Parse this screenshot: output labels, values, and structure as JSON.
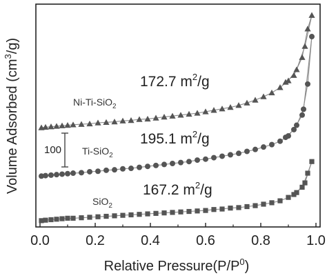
{
  "chart_data": {
    "type": "scatter",
    "xlabel": "Relative Pressure(P/P",
    "xlabel_sup": "0",
    "xlabel_end": ")",
    "ylabel": "Volume Adsorbed (cm",
    "ylabel_sup": "3",
    "ylabel_end": "/g)",
    "xlim": [
      0.0,
      1.0
    ],
    "xticks": [
      "0.0",
      "0.2",
      "0.4",
      "0.6",
      "0.8",
      "1.0"
    ],
    "yticks_shown": false,
    "scale_bar": {
      "label": "100",
      "value": 100
    },
    "series": [
      {
        "name": "Ni-Ti-SiO",
        "name_sub": "2",
        "marker": "triangle",
        "color": "#555555",
        "surface_area": "172.7 m",
        "surface_area_sup": "2",
        "surface_area_end": "/g",
        "adsorption": [
          [
            0.005,
            200
          ],
          [
            0.02,
            201
          ],
          [
            0.04,
            202
          ],
          [
            0.06,
            203
          ],
          [
            0.08,
            204
          ],
          [
            0.1,
            205
          ],
          [
            0.12,
            206
          ],
          [
            0.15,
            207
          ],
          [
            0.18,
            208
          ],
          [
            0.21,
            210
          ],
          [
            0.24,
            211
          ],
          [
            0.27,
            212
          ],
          [
            0.3,
            214
          ],
          [
            0.33,
            215
          ],
          [
            0.36,
            217
          ],
          [
            0.39,
            218
          ],
          [
            0.42,
            220
          ],
          [
            0.45,
            222
          ],
          [
            0.48,
            224
          ],
          [
            0.51,
            226
          ],
          [
            0.54,
            228
          ],
          [
            0.57,
            230
          ],
          [
            0.6,
            233
          ],
          [
            0.63,
            236
          ],
          [
            0.66,
            239
          ],
          [
            0.69,
            242
          ],
          [
            0.72,
            246
          ],
          [
            0.75,
            251
          ],
          [
            0.78,
            257
          ],
          [
            0.81,
            264
          ],
          [
            0.84,
            272
          ],
          [
            0.87,
            283
          ],
          [
            0.9,
            297
          ],
          [
            0.93,
            320
          ],
          [
            0.96,
            368
          ],
          [
            0.985,
            432
          ]
        ],
        "desorption": [
          [
            0.985,
            432
          ],
          [
            0.97,
            404
          ],
          [
            0.95,
            345
          ],
          [
            0.92,
            308
          ],
          [
            0.89,
            294
          ]
        ]
      },
      {
        "name": "Ti-SiO",
        "name_sub": "2",
        "marker": "circle",
        "color": "#555555",
        "surface_area": "195.1 m",
        "surface_area_sup": "2",
        "surface_area_end": "/g",
        "adsorption": [
          [
            0.005,
            100
          ],
          [
            0.02,
            101
          ],
          [
            0.04,
            102
          ],
          [
            0.06,
            103
          ],
          [
            0.08,
            104
          ],
          [
            0.1,
            105
          ],
          [
            0.12,
            106
          ],
          [
            0.15,
            107
          ],
          [
            0.18,
            109
          ],
          [
            0.21,
            110
          ],
          [
            0.24,
            112
          ],
          [
            0.27,
            113
          ],
          [
            0.3,
            115
          ],
          [
            0.33,
            116
          ],
          [
            0.36,
            118
          ],
          [
            0.39,
            120
          ],
          [
            0.42,
            122
          ],
          [
            0.45,
            124
          ],
          [
            0.48,
            126
          ],
          [
            0.51,
            128
          ],
          [
            0.54,
            130
          ],
          [
            0.57,
            133
          ],
          [
            0.6,
            135
          ],
          [
            0.63,
            138
          ],
          [
            0.66,
            141
          ],
          [
            0.69,
            144
          ],
          [
            0.72,
            147
          ],
          [
            0.75,
            151
          ],
          [
            0.78,
            155
          ],
          [
            0.81,
            160
          ],
          [
            0.84,
            165
          ],
          [
            0.87,
            172
          ],
          [
            0.9,
            183
          ],
          [
            0.93,
            205
          ],
          [
            0.955,
            238
          ],
          [
            0.985,
            388
          ]
        ],
        "desorption": [
          [
            0.985,
            388
          ],
          [
            0.97,
            290
          ],
          [
            0.95,
            226
          ],
          [
            0.92,
            196
          ],
          [
            0.89,
            180
          ]
        ]
      },
      {
        "name": "SiO",
        "name_sub": "2",
        "marker": "square",
        "color": "#555555",
        "surface_area": "167.2 m",
        "surface_area_sup": "2",
        "surface_area_end": "/g",
        "adsorption": [
          [
            0.005,
            8
          ],
          [
            0.02,
            9
          ],
          [
            0.04,
            10
          ],
          [
            0.06,
            11
          ],
          [
            0.08,
            12
          ],
          [
            0.1,
            13
          ],
          [
            0.12,
            13
          ],
          [
            0.15,
            14
          ],
          [
            0.18,
            15
          ],
          [
            0.21,
            16
          ],
          [
            0.24,
            17
          ],
          [
            0.27,
            18
          ],
          [
            0.3,
            19
          ],
          [
            0.33,
            20
          ],
          [
            0.36,
            21
          ],
          [
            0.39,
            22
          ],
          [
            0.42,
            23
          ],
          [
            0.45,
            24
          ],
          [
            0.48,
            25
          ],
          [
            0.51,
            26
          ],
          [
            0.54,
            27
          ],
          [
            0.57,
            28
          ],
          [
            0.6,
            29
          ],
          [
            0.63,
            31
          ],
          [
            0.66,
            32
          ],
          [
            0.69,
            34
          ],
          [
            0.72,
            35
          ],
          [
            0.75,
            37
          ],
          [
            0.78,
            39
          ],
          [
            0.81,
            42
          ],
          [
            0.84,
            45
          ],
          [
            0.87,
            49
          ],
          [
            0.9,
            56
          ],
          [
            0.93,
            66
          ],
          [
            0.96,
            86
          ],
          [
            0.985,
            130
          ]
        ],
        "desorption": [
          [
            0.985,
            130
          ],
          [
            0.97,
            106
          ],
          [
            0.95,
            77
          ],
          [
            0.92,
            62
          ]
        ]
      }
    ]
  }
}
